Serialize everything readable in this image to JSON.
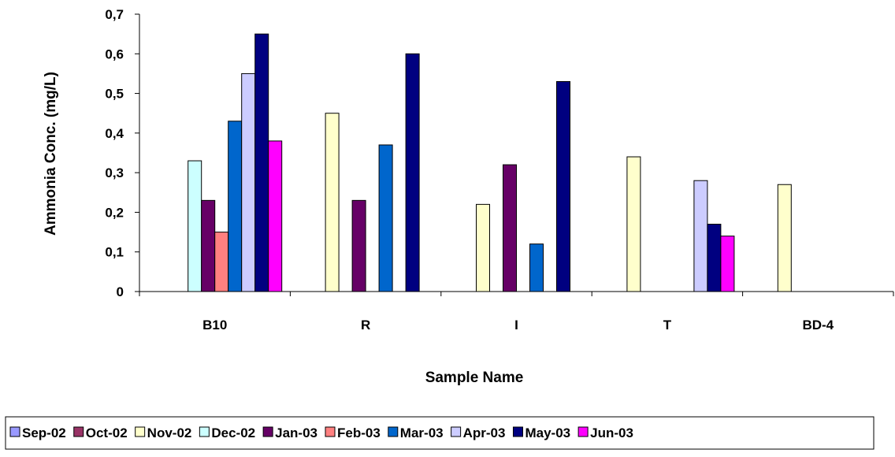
{
  "chart_data": {
    "type": "bar",
    "title": "",
    "xlabel": "Sample Name",
    "ylabel": "Ammonia Conc. (mg/L)",
    "ylim": [
      0,
      0.7
    ],
    "yticks": [
      0,
      0.1,
      0.2,
      0.3,
      0.4,
      0.5,
      0.6,
      0.7
    ],
    "ytick_labels": [
      "0",
      "0,1",
      "0,2",
      "0,3",
      "0,4",
      "0,5",
      "0,6",
      "0,7"
    ],
    "categories": [
      "B10",
      "R",
      "I",
      "T",
      "BD-4"
    ],
    "grid": false,
    "legend_position": "bottom",
    "series": [
      {
        "name": "Sep-02",
        "color": "#9999FF",
        "values": [
          null,
          null,
          null,
          null,
          null
        ]
      },
      {
        "name": "Oct-02",
        "color": "#993366",
        "values": [
          null,
          null,
          null,
          null,
          null
        ]
      },
      {
        "name": "Nov-02",
        "color": "#FFFFCC",
        "values": [
          null,
          0.45,
          0.22,
          0.34,
          0.27
        ]
      },
      {
        "name": "Dec-02",
        "color": "#CCFFFF",
        "values": [
          0.33,
          null,
          null,
          null,
          null
        ]
      },
      {
        "name": "Jan-03",
        "color": "#660066",
        "values": [
          0.23,
          0.23,
          0.32,
          null,
          null
        ]
      },
      {
        "name": "Feb-03",
        "color": "#FF8080",
        "values": [
          0.15,
          null,
          null,
          null,
          null
        ]
      },
      {
        "name": "Mar-03",
        "color": "#0066CC",
        "values": [
          0.43,
          0.37,
          0.12,
          null,
          null
        ]
      },
      {
        "name": "Apr-03",
        "color": "#CCCCFF",
        "values": [
          0.55,
          null,
          null,
          0.28,
          null
        ]
      },
      {
        "name": "May-03",
        "color": "#000080",
        "values": [
          0.65,
          0.6,
          0.53,
          0.17,
          null
        ]
      },
      {
        "name": "Jun-03",
        "color": "#FF00FF",
        "values": [
          0.38,
          null,
          null,
          0.14,
          null
        ]
      }
    ]
  }
}
